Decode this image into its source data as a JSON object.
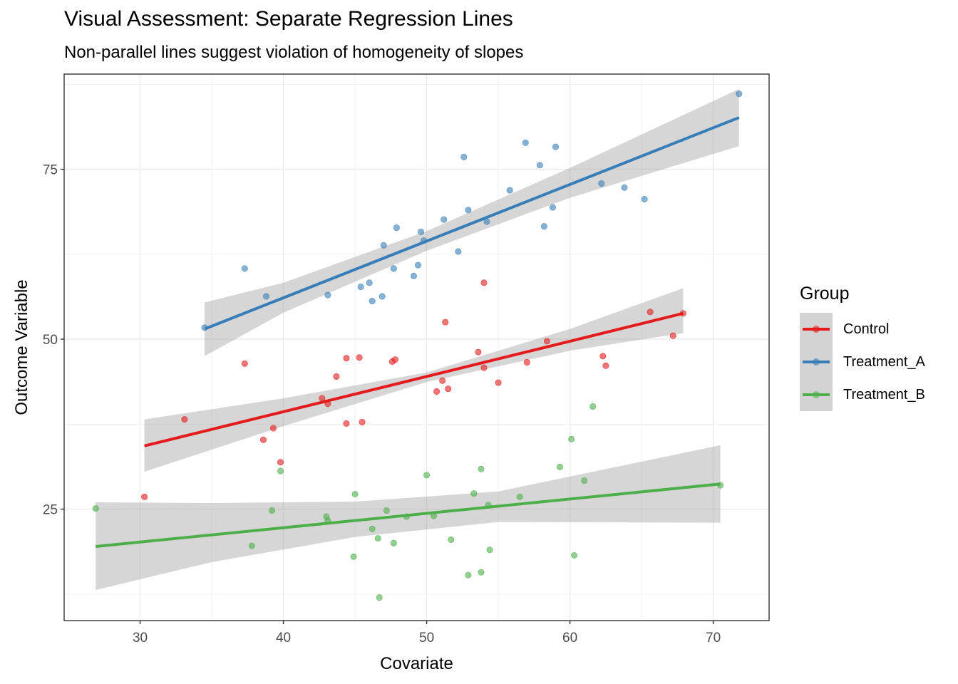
{
  "chart_data": {
    "type": "scatter",
    "title": "Visual Assessment: Separate Regression Lines",
    "subtitle": "Non-parallel lines suggest violation of homogeneity of slopes",
    "xlabel": "Covariate",
    "ylabel": "Outcome Variable",
    "xlim": [
      24.7,
      73.9
    ],
    "ylim": [
      8.6,
      89.0
    ],
    "xticks": [
      30,
      40,
      50,
      60,
      70
    ],
    "yticks": [
      25,
      50,
      75
    ],
    "grid": true,
    "legend": {
      "title": "Group",
      "position": "right",
      "entries": [
        "Control",
        "Treatment_A",
        "Treatment_B"
      ]
    },
    "series": [
      {
        "name": "Control",
        "color": "#E41A1C",
        "points": [
          [
            30.3,
            26.8
          ],
          [
            33.1,
            38.2
          ],
          [
            37.3,
            46.4
          ],
          [
            38.6,
            35.2
          ],
          [
            39.3,
            36.9
          ],
          [
            39.8,
            31.9
          ],
          [
            42.7,
            41.3
          ],
          [
            43.1,
            40.5
          ],
          [
            43.7,
            44.5
          ],
          [
            44.4,
            47.2
          ],
          [
            44.4,
            37.6
          ],
          [
            45.3,
            47.3
          ],
          [
            45.5,
            37.8
          ],
          [
            47.6,
            46.7
          ],
          [
            47.8,
            47.0
          ],
          [
            50.7,
            42.3
          ],
          [
            51.1,
            43.9
          ],
          [
            51.3,
            52.5
          ],
          [
            51.5,
            42.7
          ],
          [
            54.0,
            58.3
          ],
          [
            53.6,
            48.1
          ],
          [
            54.0,
            45.8
          ],
          [
            55.0,
            43.6
          ],
          [
            57.0,
            46.6
          ],
          [
            58.4,
            49.7
          ],
          [
            62.3,
            47.5
          ],
          [
            62.5,
            46.1
          ],
          [
            65.6,
            54.0
          ],
          [
            67.2,
            50.5
          ],
          [
            67.9,
            53.8
          ]
        ],
        "fit": {
          "x": [
            30.3,
            67.9
          ],
          "y": [
            34.3,
            53.8
          ]
        },
        "band": {
          "x": [
            30.3,
            40,
            50,
            60,
            67.9
          ],
          "lower": [
            30.5,
            37.2,
            43.7,
            48.3,
            50.9
          ],
          "upper": [
            38.2,
            41.3,
            45.1,
            51.5,
            57.5
          ]
        }
      },
      {
        "name": "Treatment_A",
        "color": "#377EB8",
        "points": [
          [
            34.5,
            51.7
          ],
          [
            37.3,
            60.4
          ],
          [
            38.8,
            56.3
          ],
          [
            43.1,
            56.5
          ],
          [
            45.4,
            57.7
          ],
          [
            46.0,
            58.3
          ],
          [
            46.2,
            55.6
          ],
          [
            46.9,
            56.3
          ],
          [
            47.0,
            63.8
          ],
          [
            47.7,
            60.4
          ],
          [
            47.9,
            66.4
          ],
          [
            49.1,
            59.3
          ],
          [
            49.4,
            60.9
          ],
          [
            49.6,
            65.8
          ],
          [
            49.8,
            64.5
          ],
          [
            51.2,
            67.6
          ],
          [
            52.2,
            62.9
          ],
          [
            52.6,
            76.8
          ],
          [
            52.9,
            69.0
          ],
          [
            54.2,
            67.3
          ],
          [
            55.8,
            71.9
          ],
          [
            56.9,
            78.9
          ],
          [
            57.9,
            75.6
          ],
          [
            58.2,
            66.6
          ],
          [
            58.8,
            69.4
          ],
          [
            59.0,
            78.3
          ],
          [
            62.2,
            72.9
          ],
          [
            63.8,
            72.3
          ],
          [
            65.2,
            70.6
          ],
          [
            71.8,
            86.1
          ]
        ],
        "fit": {
          "x": [
            34.5,
            71.8
          ],
          "y": [
            51.5,
            82.6
          ]
        },
        "band": {
          "x": [
            34.5,
            40,
            50,
            60,
            71.8
          ],
          "lower": [
            47.5,
            53.9,
            63.0,
            70.8,
            78.4
          ],
          "upper": [
            55.4,
            58.3,
            65.9,
            75.2,
            86.8
          ]
        }
      },
      {
        "name": "Treatment_B",
        "color": "#4DAF4A",
        "points": [
          [
            26.9,
            25.1
          ],
          [
            37.8,
            19.6
          ],
          [
            39.2,
            24.8
          ],
          [
            39.8,
            30.6
          ],
          [
            43.0,
            23.9
          ],
          [
            43.1,
            23.3
          ],
          [
            44.9,
            18.0
          ],
          [
            45.0,
            27.2
          ],
          [
            46.2,
            22.1
          ],
          [
            46.6,
            20.7
          ],
          [
            46.7,
            12.0
          ],
          [
            47.2,
            24.8
          ],
          [
            47.7,
            20.0
          ],
          [
            48.6,
            23.9
          ],
          [
            50.0,
            30.0
          ],
          [
            50.5,
            24.0
          ],
          [
            51.7,
            20.5
          ],
          [
            52.9,
            15.3
          ],
          [
            53.3,
            27.3
          ],
          [
            53.8,
            30.9
          ],
          [
            53.8,
            15.7
          ],
          [
            54.3,
            25.6
          ],
          [
            54.4,
            19.0
          ],
          [
            56.5,
            26.8
          ],
          [
            59.3,
            31.2
          ],
          [
            60.1,
            35.3
          ],
          [
            60.3,
            18.2
          ],
          [
            61.0,
            29.2
          ],
          [
            61.6,
            40.1
          ],
          [
            70.5,
            28.5
          ]
        ],
        "fit": {
          "x": [
            26.9,
            70.5
          ],
          "y": [
            19.5,
            28.7
          ]
        },
        "band": {
          "x": [
            26.9,
            35,
            45,
            55,
            70.5
          ],
          "lower": [
            13.1,
            17.2,
            20.9,
            23.1,
            23.0
          ],
          "upper": [
            26.0,
            25.9,
            26.1,
            27.6,
            34.4
          ]
        }
      }
    ]
  }
}
